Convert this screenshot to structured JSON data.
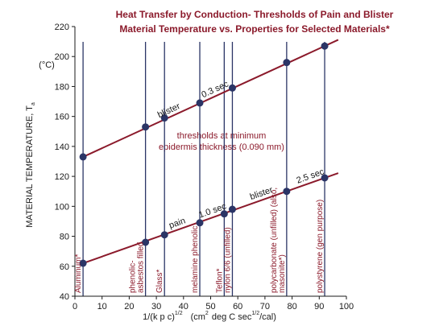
{
  "chart_data": {
    "type": "line",
    "title": "Heat Transfer by Conduction- Thresholds of Pain and Blister",
    "subtitle": "Material Temperature vs. Properties for Selected Materials*",
    "ylabel_main": "MATERIAL TEMPERATURE, T",
    "ylabel_sub": "a",
    "yunit": "(°C)",
    "xlabel_main": "1/(k p c)",
    "xlabel_exp1": "1/2",
    "xlabel_units": "(cm",
    "xlabel_exp2": "2",
    "xlabel_units2": "deg C sec",
    "xlabel_exp3": "1/2",
    "xlabel_units3": "/cal)",
    "xlim": [
      0,
      100
    ],
    "ylim": [
      40,
      220
    ],
    "xticks": [
      0,
      10,
      20,
      30,
      40,
      50,
      60,
      70,
      80,
      90,
      100
    ],
    "yticks": [
      40,
      60,
      80,
      100,
      120,
      140,
      160,
      180,
      200,
      220
    ],
    "series": [
      {
        "name": "blister",
        "time_label": "0.3 sec",
        "x": [
          3,
          26,
          33,
          46,
          58,
          78,
          92
        ],
        "y": [
          133,
          153,
          159,
          169,
          179,
          196,
          207
        ]
      },
      {
        "name": "pain",
        "time_label": "1.0 sec",
        "x": [
          3,
          26,
          33,
          46,
          55,
          58,
          78,
          92
        ],
        "y": [
          62,
          76,
          81,
          89,
          95,
          98,
          110,
          119
        ]
      }
    ],
    "blister_upper_label": "blister",
    "blister_upper_time": "2.5 sec",
    "annotation_line1": "thresholds at minimum",
    "annotation_line2": "epidermis thickness (0.090 mm)",
    "materials": [
      {
        "x": 3,
        "lines": [
          "Aluminum*"
        ]
      },
      {
        "x": 26,
        "lines": [
          "phenolic-",
          "asbestos filled"
        ]
      },
      {
        "x": 33,
        "lines": [
          "Glass*"
        ]
      },
      {
        "x": 46,
        "lines": [
          "melamine phenolic"
        ]
      },
      {
        "x": 55,
        "lines": [
          "Teflon*"
        ]
      },
      {
        "x": 58,
        "lines": [
          "nylon 6/6 (unfilled)"
        ]
      },
      {
        "x": 78,
        "lines": [
          "polycarbonate (unfilled) (also,",
          "masonite*)"
        ]
      },
      {
        "x": 92,
        "lines": [
          "polystyrene (gen purpose)"
        ]
      }
    ],
    "grid": false,
    "colors": {
      "line": "#8b1a2b",
      "point": "#2b3566",
      "vertical": "#2b3566",
      "title": "#8b1a2b"
    }
  }
}
